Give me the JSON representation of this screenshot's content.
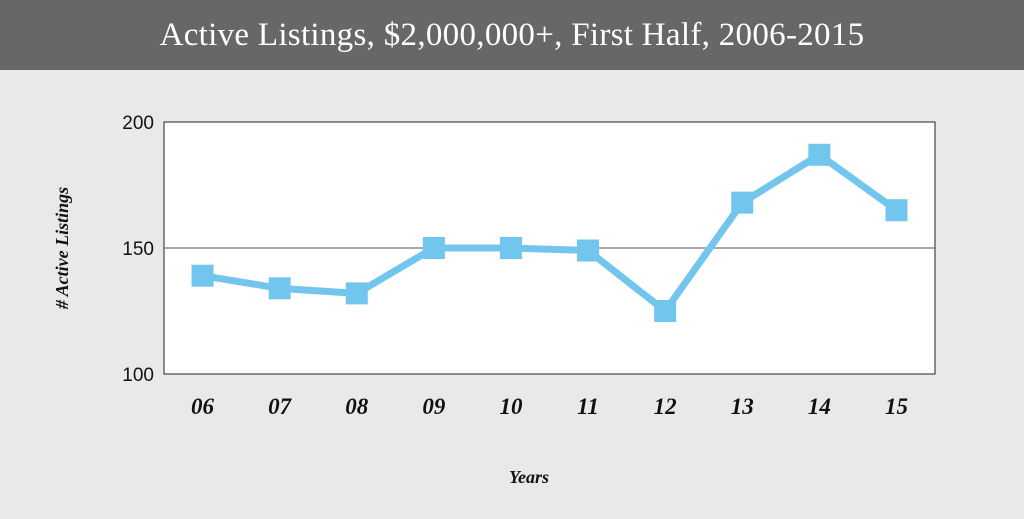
{
  "chart_data": {
    "type": "line",
    "title": "Active Listings, $2,000,000+, First Half, 2006-2015",
    "xlabel": "Years",
    "ylabel": "# Active Listings",
    "categories": [
      "06",
      "07",
      "08",
      "09",
      "10",
      "11",
      "12",
      "13",
      "14",
      "15"
    ],
    "series": [
      {
        "values": [
          139,
          134,
          132,
          150,
          150,
          149,
          125,
          168,
          187,
          165
        ]
      }
    ],
    "ylim": [
      100,
      200
    ],
    "yticks": [
      "100",
      "150",
      "200"
    ],
    "grid": "horizontal at 150",
    "legend": "none",
    "colors": {
      "line": "#72c5ec",
      "marker": "#72c5ec",
      "title_bar": "#676767",
      "plot_bg": "#ffffff",
      "page_bg": "#e9e9e9"
    }
  }
}
